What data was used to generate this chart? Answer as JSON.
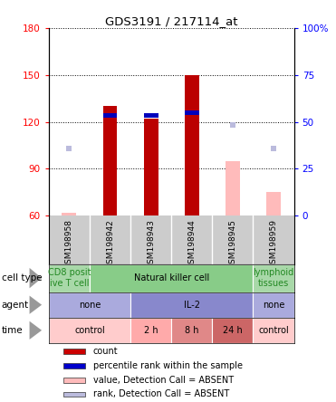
{
  "title": "GDS3191 / 217114_at",
  "samples": [
    "GSM198958",
    "GSM198942",
    "GSM198943",
    "GSM198944",
    "GSM198945",
    "GSM198959"
  ],
  "ylim_left": [
    60,
    180
  ],
  "ylim_right": [
    0,
    100
  ],
  "yticks_left": [
    60,
    90,
    120,
    150,
    180
  ],
  "yticks_right": [
    0,
    25,
    50,
    75,
    100
  ],
  "yticklabels_right": [
    "0",
    "25",
    "50",
    "75",
    "100%"
  ],
  "bar_counts": [
    null,
    130,
    122,
    150,
    null,
    null
  ],
  "bar_ranks": [
    null,
    124,
    124,
    126,
    null,
    null
  ],
  "absent_values": [
    62,
    null,
    null,
    null,
    95,
    75
  ],
  "absent_ranks": [
    103,
    null,
    null,
    null,
    118,
    103
  ],
  "cell_type_groups": [
    {
      "label": "CD8 posit\nive T cell",
      "cols": [
        0,
        0
      ],
      "color": "#a8d8a8",
      "text_color": "#228822"
    },
    {
      "label": "Natural killer cell",
      "cols": [
        1,
        4
      ],
      "color": "#88cc88",
      "text_color": "#000000"
    },
    {
      "label": "lymphoid\ntissues",
      "cols": [
        5,
        5
      ],
      "color": "#a8d8a8",
      "text_color": "#228822"
    }
  ],
  "agent_groups": [
    {
      "label": "none",
      "cols": [
        0,
        1
      ],
      "color": "#aaaadd"
    },
    {
      "label": "IL-2",
      "cols": [
        2,
        4
      ],
      "color": "#8888cc"
    },
    {
      "label": "none",
      "cols": [
        5,
        5
      ],
      "color": "#aaaadd"
    }
  ],
  "time_groups": [
    {
      "label": "control",
      "cols": [
        0,
        1
      ],
      "color": "#ffcccc"
    },
    {
      "label": "2 h",
      "cols": [
        2,
        2
      ],
      "color": "#ffaaaa"
    },
    {
      "label": "8 h",
      "cols": [
        3,
        3
      ],
      "color": "#e08888"
    },
    {
      "label": "24 h",
      "cols": [
        4,
        4
      ],
      "color": "#cc6666"
    },
    {
      "label": "control",
      "cols": [
        5,
        5
      ],
      "color": "#ffcccc"
    }
  ],
  "legend_items": [
    {
      "color": "#cc0000",
      "label": "count"
    },
    {
      "color": "#0000cc",
      "label": "percentile rank within the sample"
    },
    {
      "color": "#ffbbbb",
      "label": "value, Detection Call = ABSENT"
    },
    {
      "color": "#bbbbdd",
      "label": "rank, Detection Call = ABSENT"
    }
  ],
  "bar_color": "#bb0000",
  "rank_color": "#0000bb",
  "absent_bar_color": "#ffbbbb",
  "absent_rank_color": "#bbbbdd",
  "sample_bg_color": "#cccccc",
  "bar_width": 0.35,
  "figsize": [
    3.71,
    4.44
  ],
  "dpi": 100
}
